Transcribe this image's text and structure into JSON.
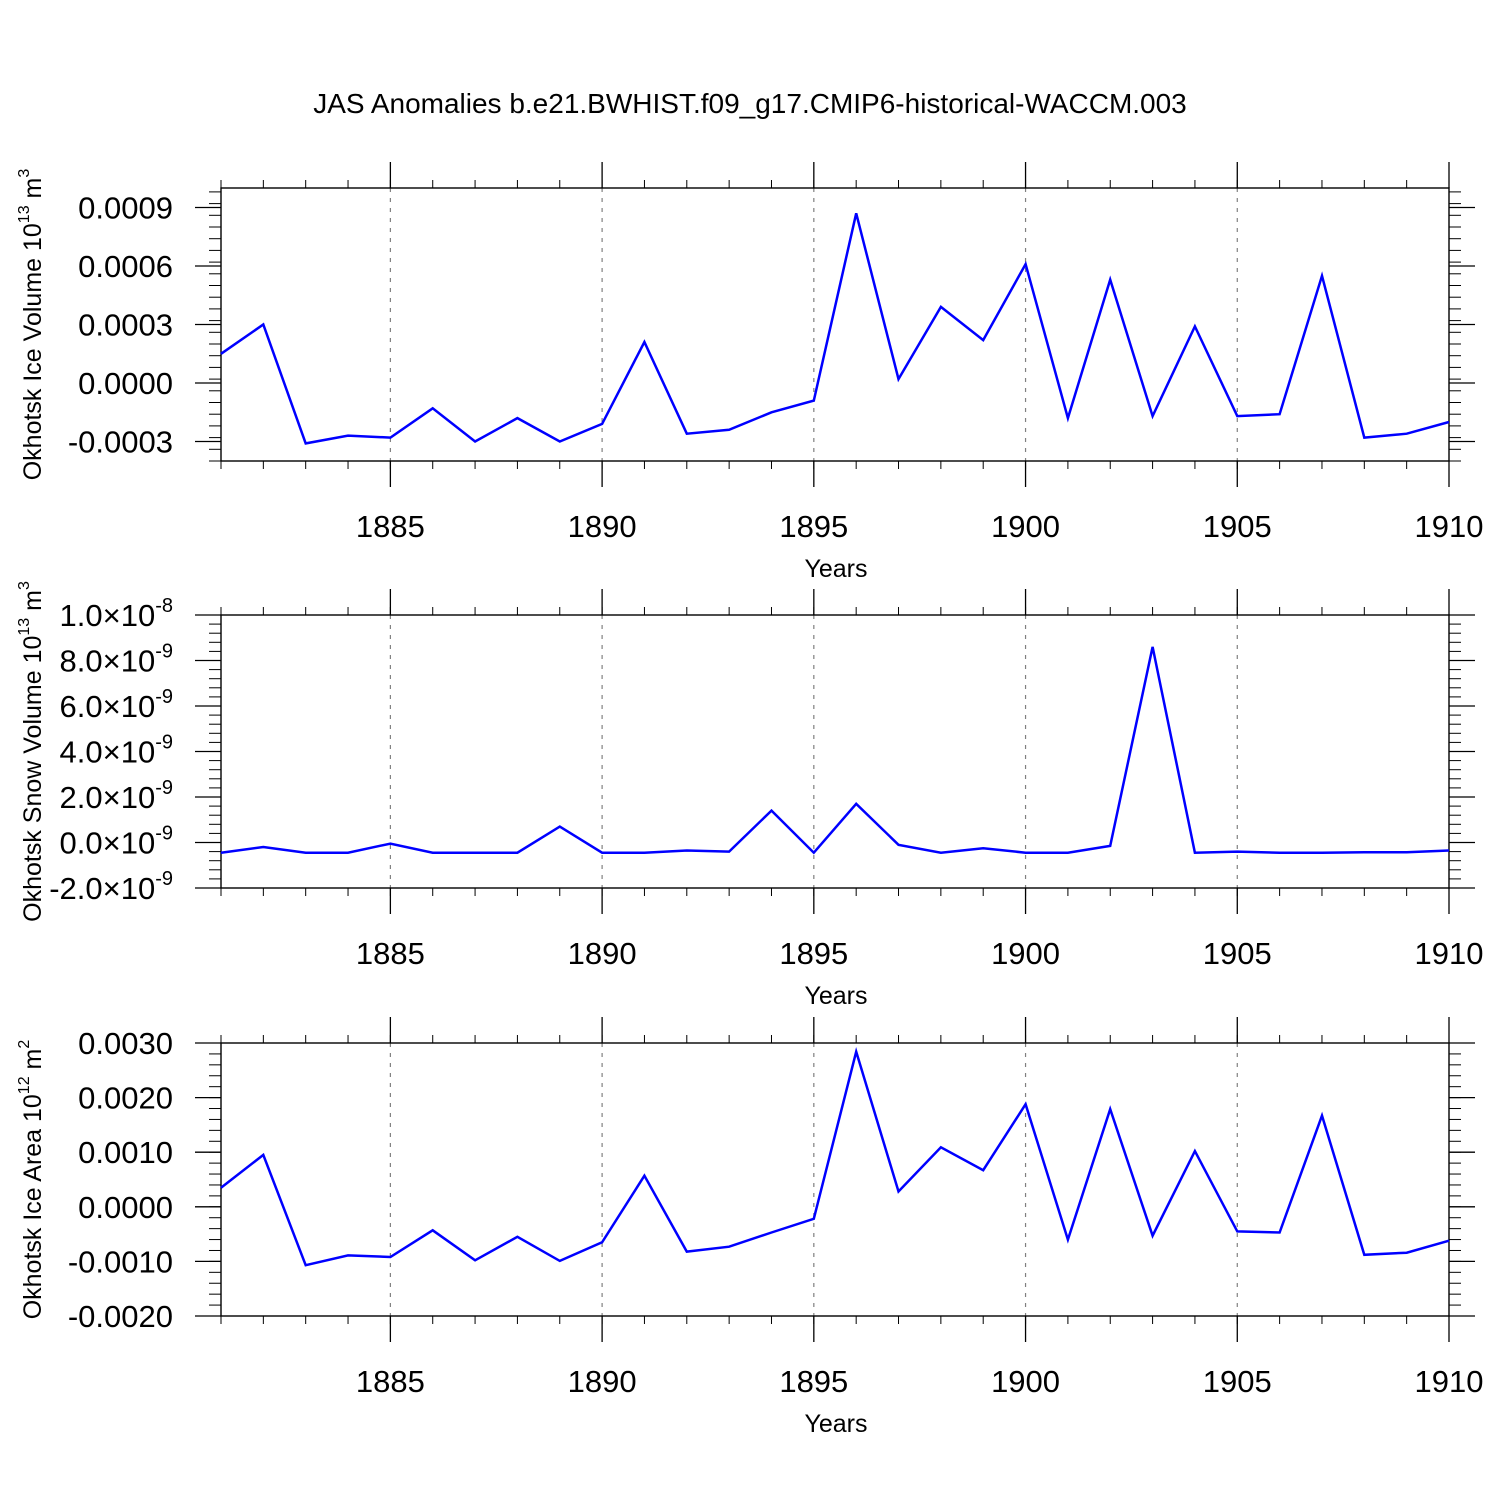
{
  "title": "JAS Anomalies b.e21.BWHIST.f09_g17.CMIP6-historical-WACCM.003",
  "colors": {
    "line": "#0000ff",
    "axis": "#000000",
    "grid": "#808080",
    "background": "#ffffff"
  },
  "chart_data": [
    {
      "type": "line",
      "ylabel": {
        "text": "Okhotsk Ice Volume 10",
        "sup": "13",
        "unit": " m",
        "unit_sup": "3"
      },
      "xlabel": "Years",
      "xlim": [
        1881,
        1910
      ],
      "xticks": [
        1885,
        1890,
        1895,
        1900,
        1905,
        1910
      ],
      "ylim": [
        -0.0004,
        0.001
      ],
      "yticks": [
        -0.0003,
        0.0,
        0.0003,
        0.0006,
        0.0009
      ],
      "ytick_labels": [
        "-0.0003",
        "0.0000",
        "0.0003",
        "0.0006",
        "0.0009"
      ],
      "grid": "vertical dashed at major x ticks",
      "series": [
        {
          "x": [
            1881,
            1882,
            1883,
            1884,
            1885,
            1886,
            1887,
            1888,
            1889,
            1890,
            1891,
            1892,
            1893,
            1894,
            1895,
            1896,
            1897,
            1898,
            1899,
            1900,
            1901,
            1902,
            1903,
            1904,
            1905,
            1906,
            1907,
            1908,
            1909,
            1910
          ],
          "values": [
            0.00015,
            0.0003,
            -0.00031,
            -0.00027,
            -0.00028,
            -0.00013,
            -0.0003,
            -0.00018,
            -0.0003,
            -0.00021,
            0.00021,
            -0.00026,
            -0.00024,
            -0.00015,
            -9e-05,
            0.00087,
            2e-05,
            0.00039,
            0.00022,
            0.00061,
            -0.00018,
            0.00053,
            -0.00017,
            0.00029,
            -0.00017,
            -0.00016,
            0.00055,
            -0.00028,
            -0.00026,
            -0.0002
          ]
        }
      ]
    },
    {
      "type": "line",
      "ylabel": {
        "text": "Okhotsk Snow Volume 10",
        "sup": "13",
        "unit": " m",
        "unit_sup": "3"
      },
      "xlabel": "Years",
      "xlim": [
        1881,
        1910
      ],
      "xticks": [
        1885,
        1890,
        1895,
        1900,
        1905,
        1910
      ],
      "ylim": [
        -2e-09,
        1e-08
      ],
      "yticks": [
        -2e-09,
        0,
        2e-09,
        4e-09,
        6e-09,
        8e-09,
        1e-08
      ],
      "ytick_labels": [
        {
          "mant": "-2.0",
          "times": "×10",
          "exp": "-9"
        },
        {
          "mant": "0.0",
          "times": "×10",
          "exp": "-9"
        },
        {
          "mant": "2.0",
          "times": "×10",
          "exp": "-9"
        },
        {
          "mant": "4.0",
          "times": "×10",
          "exp": "-9"
        },
        {
          "mant": "6.0",
          "times": "×10",
          "exp": "-9"
        },
        {
          "mant": "8.0",
          "times": "×10",
          "exp": "-9"
        },
        {
          "mant": "1.0",
          "times": "×10",
          "exp": "-8"
        }
      ],
      "grid": "vertical dashed at major x ticks",
      "series": [
        {
          "x": [
            1881,
            1882,
            1883,
            1884,
            1885,
            1886,
            1887,
            1888,
            1889,
            1890,
            1891,
            1892,
            1893,
            1894,
            1895,
            1896,
            1897,
            1898,
            1899,
            1900,
            1901,
            1902,
            1903,
            1904,
            1905,
            1906,
            1907,
            1908,
            1909,
            1910
          ],
          "values": [
            -4.5e-10,
            -2e-10,
            -4.5e-10,
            -4.5e-10,
            -5e-11,
            -4.5e-10,
            -4.5e-10,
            -4.5e-10,
            7e-10,
            -4.5e-10,
            -4.5e-10,
            -3.5e-10,
            -4e-10,
            1.4e-09,
            -4.5e-10,
            1.7e-09,
            -1e-10,
            -4.5e-10,
            -2.5e-10,
            -4.5e-10,
            -4.5e-10,
            -1.5e-10,
            8.6e-09,
            -4.5e-10,
            -4e-10,
            -4.5e-10,
            -4.5e-10,
            -4.3e-10,
            -4.3e-10,
            -3.5e-10
          ]
        }
      ]
    },
    {
      "type": "line",
      "ylabel": {
        "text": "Okhotsk Ice Area 10",
        "sup": "12",
        "unit": " m",
        "unit_sup": "2"
      },
      "xlabel": "Years",
      "xlim": [
        1881,
        1910
      ],
      "xticks": [
        1885,
        1890,
        1895,
        1900,
        1905,
        1910
      ],
      "ylim": [
        -0.002,
        0.003
      ],
      "yticks": [
        -0.002,
        -0.001,
        0.0,
        0.001,
        0.002,
        0.003
      ],
      "ytick_labels": [
        "-0.0020",
        "-0.0010",
        "0.0000",
        "0.0010",
        "0.0020",
        "0.0030"
      ],
      "grid": "vertical dashed at major x ticks",
      "series": [
        {
          "x": [
            1881,
            1882,
            1883,
            1884,
            1885,
            1886,
            1887,
            1888,
            1889,
            1890,
            1891,
            1892,
            1893,
            1894,
            1895,
            1896,
            1897,
            1898,
            1899,
            1900,
            1901,
            1902,
            1903,
            1904,
            1905,
            1906,
            1907,
            1908,
            1909,
            1910
          ],
          "values": [
            0.00035,
            0.00095,
            -0.00107,
            -0.00089,
            -0.00092,
            -0.00043,
            -0.00098,
            -0.00055,
            -0.00099,
            -0.00065,
            0.00057,
            -0.00082,
            -0.00073,
            -0.00047,
            -0.00022,
            0.00284,
            0.00028,
            0.00109,
            0.00067,
            0.00188,
            -0.0006,
            0.00179,
            -0.00053,
            0.00102,
            -0.00045,
            -0.00047,
            0.00167,
            -0.00088,
            -0.00084,
            -0.00062
          ]
        }
      ]
    }
  ]
}
